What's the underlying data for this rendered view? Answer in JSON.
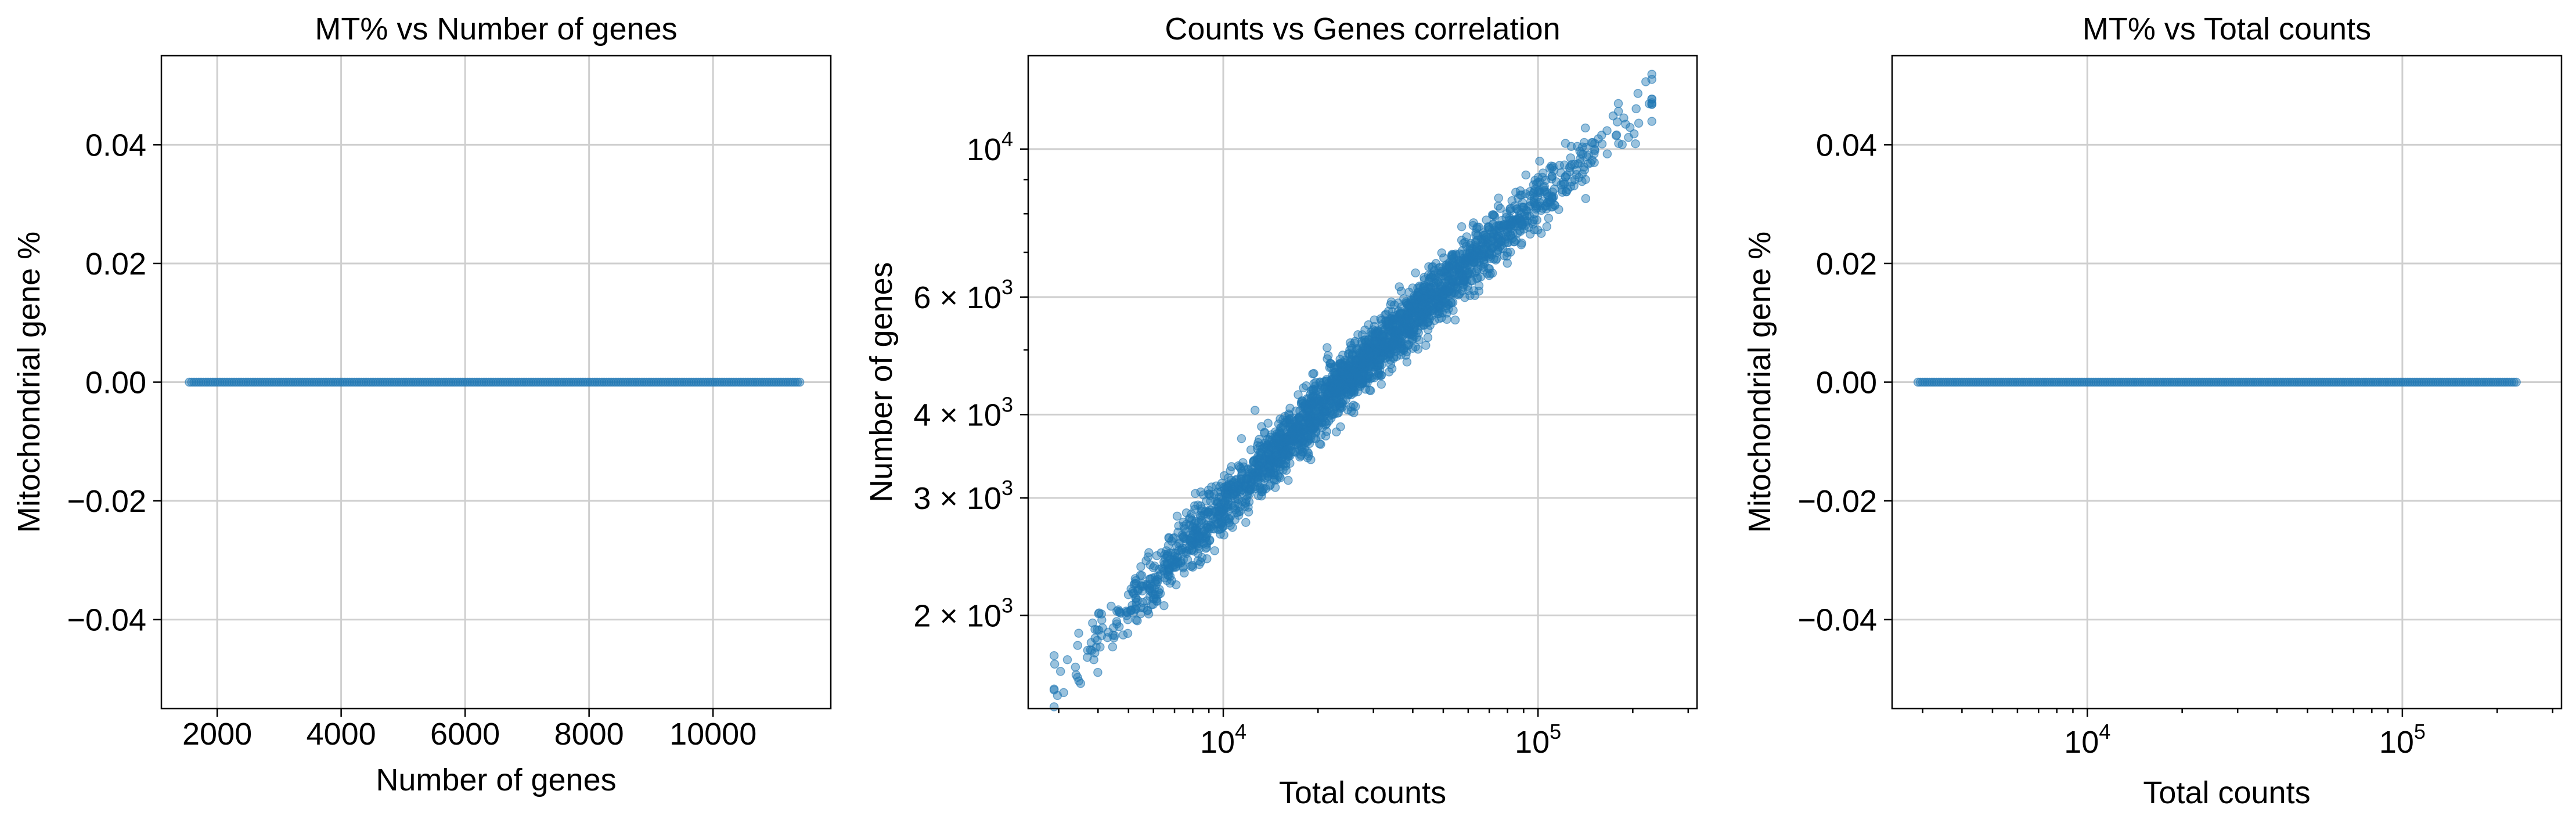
{
  "colors": {
    "series": "#1f77b4",
    "grid": "#cfcfcf",
    "axes": "#000000",
    "background": "#ffffff"
  },
  "chart_data": [
    {
      "type": "scatter",
      "title": "MT% vs Number of genes",
      "xlabel": "Number of genes",
      "ylabel": "Mitochondrial gene %",
      "xscale": "linear",
      "yscale": "linear",
      "xlim": [
        1100,
        11900
      ],
      "ylim": [
        -0.055,
        0.055
      ],
      "xticks": [
        2000,
        4000,
        6000,
        8000,
        10000
      ],
      "xtick_labels": [
        "2000",
        "4000",
        "6000",
        "8000",
        "10000"
      ],
      "yticks": [
        -0.04,
        -0.02,
        0.0,
        0.02,
        0.04
      ],
      "ytick_labels": [
        "−0.04",
        "−0.02",
        "0.00",
        "0.02",
        "0.04"
      ],
      "grid": true,
      "x_range_points": [
        1550,
        11400
      ],
      "y_constant": 0.0
    },
    {
      "type": "scatter",
      "title": "Counts vs Genes correlation",
      "xlabel": "Total counts",
      "ylabel": "Number of genes",
      "xscale": "log",
      "yscale": "log",
      "xlim": [
        2400,
        320000
      ],
      "ylim": [
        1450,
        13800
      ],
      "xticks": [
        10000,
        100000
      ],
      "xtick_labels": [
        {
          "base": "10",
          "exp": "4"
        },
        {
          "base": "10",
          "exp": "5"
        }
      ],
      "yticks": [
        2000,
        3000,
        4000,
        6000,
        10000
      ],
      "ytick_labels": [
        {
          "base": "2 × 10",
          "exp": "3"
        },
        {
          "base": "3 × 10",
          "exp": "3"
        },
        {
          "base": "4 × 10",
          "exp": "3"
        },
        {
          "base": "6 × 10",
          "exp": "3"
        },
        {
          "base": "10",
          "exp": "4"
        }
      ],
      "grid": true,
      "trend": {
        "x_start": 2900,
        "x_end": 230000,
        "y_start": 1550,
        "y_end": 11800
      },
      "point_count": 2700
    },
    {
      "type": "scatter",
      "title": "MT% vs Total counts",
      "xlabel": "Total counts",
      "ylabel": "Mitochondrial gene %",
      "xscale": "log",
      "yscale": "linear",
      "xlim": [
        2400,
        320000
      ],
      "ylim": [
        -0.055,
        0.055
      ],
      "xticks": [
        10000,
        100000
      ],
      "xtick_labels": [
        {
          "base": "10",
          "exp": "4"
        },
        {
          "base": "10",
          "exp": "5"
        }
      ],
      "yticks": [
        -0.04,
        -0.02,
        0.0,
        0.02,
        0.04
      ],
      "ytick_labels": [
        "−0.04",
        "−0.02",
        "0.00",
        "0.02",
        "0.04"
      ],
      "grid": true,
      "x_range_points": [
        2900,
        230000
      ],
      "y_constant": 0.0
    }
  ]
}
